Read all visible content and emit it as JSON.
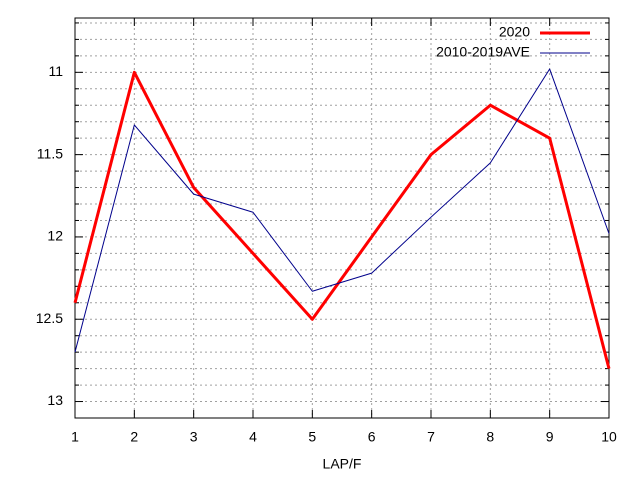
{
  "chart_data": {
    "type": "line",
    "x_label": "LAP/F",
    "x": [
      1,
      2,
      3,
      4,
      5,
      6,
      7,
      8,
      9,
      10
    ],
    "series": [
      {
        "name": "2020",
        "color": "#ff0000",
        "values": [
          12.4,
          11.0,
          11.7,
          12.1,
          12.5,
          12.0,
          11.5,
          11.2,
          11.4,
          12.8
        ]
      },
      {
        "name": "2010-2019AVE",
        "color": "#00008b",
        "values": [
          12.7,
          11.32,
          11.74,
          11.85,
          12.33,
          12.22,
          11.88,
          11.55,
          10.98,
          11.98
        ]
      }
    ],
    "xlim": [
      1,
      10
    ],
    "xticks": [
      1,
      2,
      3,
      4,
      5,
      6,
      7,
      8,
      9,
      10
    ],
    "ylim": [
      13.1,
      10.67
    ],
    "yticks": [
      11,
      11.5,
      12,
      12.5,
      13
    ],
    "y_minor_ticks": [
      10.7,
      10.8,
      10.9,
      11.1,
      11.2,
      11.3,
      11.4,
      11.6,
      11.7,
      11.8,
      11.9,
      12.1,
      12.2,
      12.3,
      12.4,
      12.6,
      12.7,
      12.8,
      12.9,
      13.1
    ],
    "grid": true,
    "legend": "top-right"
  }
}
